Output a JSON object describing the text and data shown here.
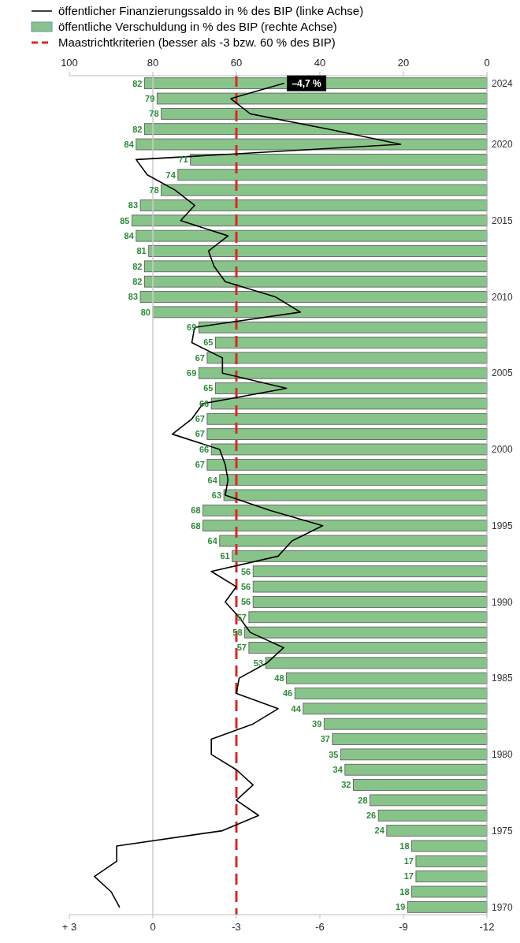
{
  "chart_data": {
    "type": "bar",
    "orientation": "horizontal",
    "categories": [
      "2024",
      null,
      null,
      null,
      "2020",
      null,
      null,
      null,
      null,
      "2015",
      null,
      null,
      null,
      null,
      "2010",
      null,
      null,
      null,
      null,
      "2005",
      null,
      null,
      null,
      null,
      "2000",
      null,
      null,
      null,
      null,
      "1995",
      null,
      null,
      null,
      null,
      "1990",
      null,
      null,
      null,
      null,
      "1985",
      null,
      null,
      null,
      null,
      "1980",
      null,
      null,
      null,
      null,
      "1975",
      null,
      null,
      null,
      null,
      "1970"
    ],
    "xlim": [
      3,
      -12
    ],
    "xticks": [
      {
        "value": 3,
        "label": "+ 3"
      },
      0,
      -3,
      -6,
      -9,
      -12
    ],
    "x2lim": [
      100,
      0
    ],
    "x2ticks": [
      100,
      80,
      60,
      40,
      20,
      0
    ],
    "series": [
      {
        "name": "öffentliche Verschuldung in % des BIP (rechte Achse)",
        "axis": "x2",
        "color": "#88c48a",
        "values": [
          82,
          79,
          78,
          82,
          84,
          71,
          74,
          78,
          83,
          85,
          84,
          81,
          82,
          82,
          83,
          80,
          69,
          65,
          67,
          69,
          65,
          66,
          67,
          67,
          66,
          67,
          64,
          63,
          68,
          68,
          64,
          61,
          56,
          56,
          56,
          57,
          58,
          57,
          53,
          48,
          46,
          44,
          39,
          37,
          35,
          34,
          32,
          28,
          26,
          24,
          18,
          17,
          17,
          18,
          19
        ],
        "value_labels": [
          "82",
          "79",
          "78",
          "82",
          "84",
          "71",
          "74",
          "78",
          "83",
          "85",
          "84",
          "81",
          "82",
          "82",
          "83",
          "80",
          "69",
          "65",
          "67",
          "69",
          "65",
          "66",
          "67",
          "67",
          "66",
          "67",
          "64",
          "63",
          "68",
          "68",
          "64",
          "61",
          "56",
          "56",
          "56",
          "57",
          "58",
          "57",
          "53",
          "48",
          "46",
          "44",
          "39",
          "37",
          "35",
          "34",
          "32",
          "28",
          "26",
          "24",
          "18",
          "17",
          "17",
          "18",
          "19"
        ]
      },
      {
        "name": "öffentlicher Finanzierungssaldo in % des BIP (linke Achse)",
        "type": "line",
        "color": "#000000",
        "values": [
          -4.7,
          -2.8,
          -3.5,
          -6.3,
          -8.9,
          0.6,
          0.2,
          -0.8,
          -1.5,
          -1.0,
          -2.7,
          -2.0,
          -2.2,
          -2.6,
          -4.4,
          -5.3,
          -1.5,
          -1.4,
          -2.5,
          -2.5,
          -4.8,
          -1.8,
          -1.4,
          -0.7,
          -2.4,
          -2.6,
          -2.7,
          -2.6,
          -4.2,
          -6.1,
          -5.0,
          -4.5,
          -2.1,
          -3.0,
          -2.6,
          -3.1,
          -3.5,
          -4.7,
          -4.1,
          -3.1,
          -3.0,
          -4.5,
          -3.6,
          -2.1,
          -2.1,
          -3.0,
          -3.6,
          -3.0,
          -3.8,
          -2.5,
          1.3,
          1.3,
          2.1,
          1.5,
          1.2
        ]
      }
    ],
    "ref_lines": [
      {
        "axis": "x",
        "value": 0,
        "color": "#cccccc"
      },
      {
        "axis": "x",
        "value": -3,
        "label": "Maastrichtkriterien (besser als -3 bzw. 60 % des BIP)",
        "color": "#d42a2a",
        "line_style": "dashed"
      }
    ],
    "annotations": [
      {
        "text": "–4,7 %",
        "x": -4.7,
        "y": "2024"
      }
    ],
    "legend": "top"
  }
}
